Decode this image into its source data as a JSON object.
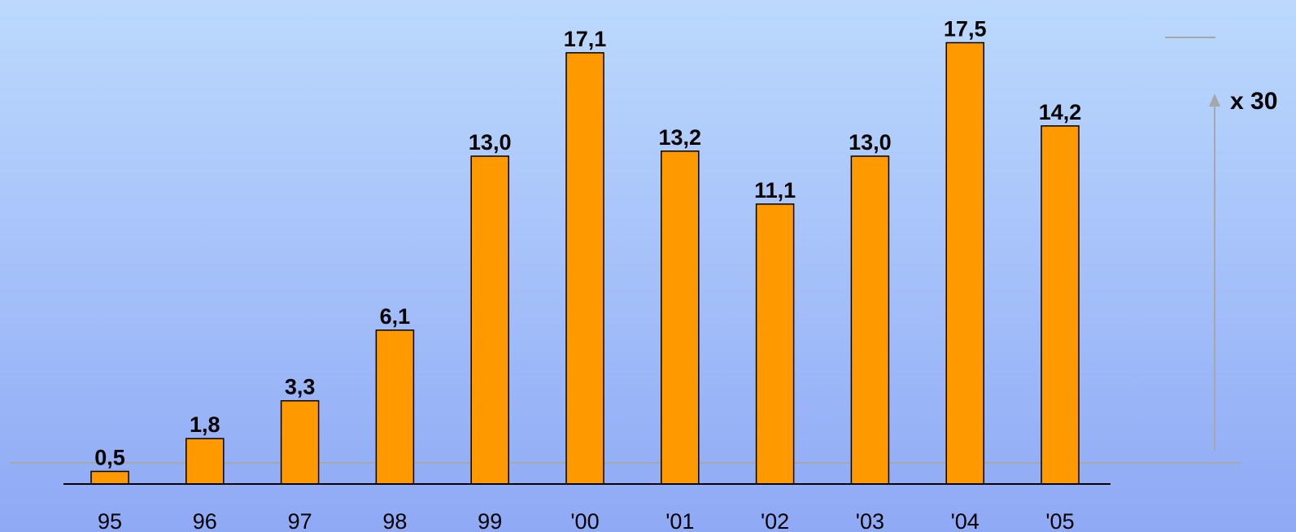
{
  "chart_data": {
    "type": "bar",
    "categories": [
      "95",
      "96",
      "97",
      "98",
      "99",
      "'00",
      "'01",
      "'02",
      "'03",
      "'04",
      "'05"
    ],
    "values": [
      0.5,
      1.8,
      3.3,
      6.1,
      13.0,
      17.1,
      13.2,
      11.1,
      13.0,
      17.5,
      14.2
    ],
    "data_labels": [
      "0,5",
      "1,8",
      "3,3",
      "6,1",
      "13,0",
      "17,1",
      "13,2",
      "11,1",
      "13,0",
      "17,5",
      "14,2"
    ],
    "title": "",
    "xlabel": "",
    "ylabel": "",
    "ylim": [
      0,
      18
    ],
    "grid": false,
    "legend": "none",
    "annotation": "x 30"
  },
  "colors": {
    "background_top": "#bcd9fd",
    "background_bottom": "#8fa9f5",
    "bar_fill": "#ff9900",
    "bar_stroke": "#000000",
    "axis_line": "#000000",
    "reference_line": "#a3a8a8",
    "arrow": "#a3a8a8"
  }
}
